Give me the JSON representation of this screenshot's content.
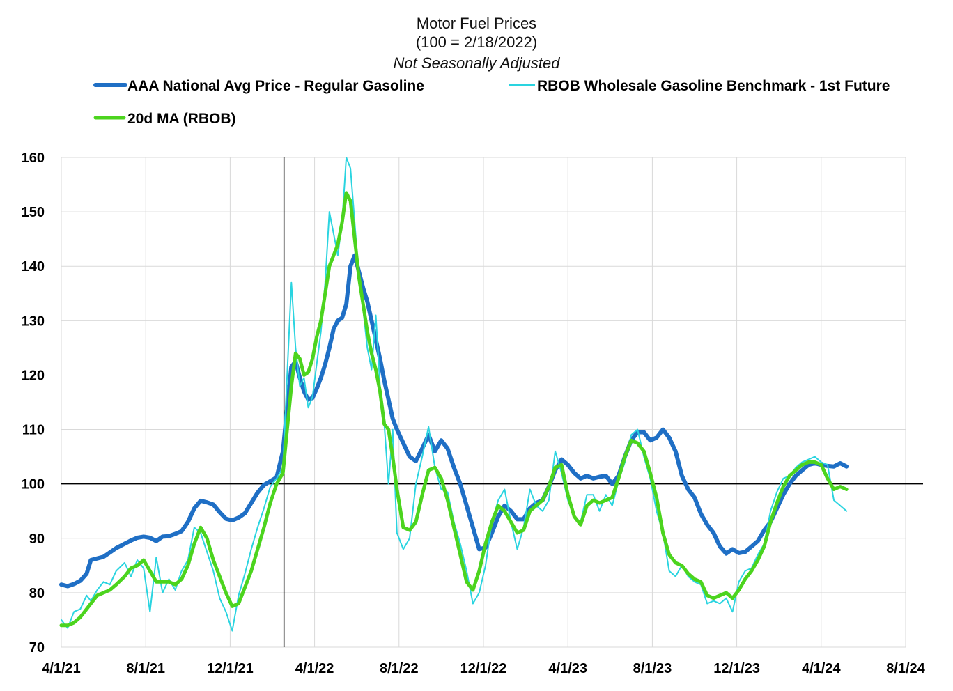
{
  "chart_data": {
    "type": "line",
    "title": "Motor Fuel Prices",
    "subtitle": "(100 = 2/18/2022)",
    "note": "Not Seasonally Adjusted",
    "xlabel": "",
    "ylabel": "",
    "ylim": [
      70,
      160
    ],
    "yticks": [
      "70",
      "80",
      "90",
      "100",
      "110",
      "120",
      "130",
      "140",
      "150",
      "160"
    ],
    "x_ticks_month_index": [
      0,
      4,
      8,
      12,
      16,
      20,
      24,
      28,
      32,
      36,
      40
    ],
    "x_tick_labels": [
      "4/1/21",
      "8/1/21",
      "12/1/21",
      "4/1/22",
      "8/1/22",
      "12/1/22",
      "4/1/23",
      "8/1/23",
      "12/1/23",
      "4/1/24",
      "8/1/24"
    ],
    "reference_lines": {
      "y": 100,
      "x_month_index": 10.55,
      "x_label": "2/18/2022"
    },
    "grid": true,
    "legend_position": "top",
    "series": [
      {
        "name": "AAA National Avg Price - Regular Gasoline",
        "color": "#1f6fc5",
        "width": 6,
        "x": [
          0,
          0.3,
          0.6,
          0.9,
          1.2,
          1.4,
          1.7,
          2.0,
          2.3,
          2.6,
          3.0,
          3.3,
          3.6,
          3.9,
          4.2,
          4.5,
          4.8,
          5.1,
          5.4,
          5.7,
          6.0,
          6.3,
          6.6,
          6.9,
          7.2,
          7.5,
          7.8,
          8.1,
          8.4,
          8.7,
          9.0,
          9.3,
          9.6,
          9.9,
          10.2,
          10.5,
          10.7,
          10.9,
          11.1,
          11.3,
          11.5,
          11.7,
          11.9,
          12.1,
          12.3,
          12.5,
          12.7,
          12.9,
          13.1,
          13.3,
          13.5,
          13.7,
          13.9,
          14.1,
          14.3,
          14.5,
          14.7,
          14.9,
          15.1,
          15.3,
          15.5,
          15.7,
          15.9,
          16.2,
          16.5,
          16.8,
          17.1,
          17.4,
          17.7,
          18.0,
          18.3,
          18.6,
          18.9,
          19.2,
          19.5,
          19.8,
          20.1,
          20.4,
          20.7,
          21.0,
          21.3,
          21.6,
          21.9,
          22.2,
          22.5,
          22.8,
          23.1,
          23.4,
          23.7,
          24.0,
          24.3,
          24.6,
          24.9,
          25.2,
          25.5,
          25.8,
          26.1,
          26.4,
          26.7,
          27.0,
          27.3,
          27.6,
          27.9,
          28.2,
          28.5,
          28.8,
          29.1,
          29.4,
          29.7,
          30.0,
          30.3,
          30.6,
          30.9,
          31.2,
          31.5,
          31.8,
          32.1,
          32.4,
          32.7,
          33.0,
          33.3,
          33.6,
          33.9,
          34.2,
          34.5,
          34.8,
          35.1,
          35.4,
          35.7,
          36.0,
          36.3,
          36.6,
          36.9,
          37.2
        ],
        "y": [
          81.5,
          81.2,
          81.6,
          82.2,
          83.5,
          86.0,
          86.3,
          86.6,
          87.4,
          88.2,
          89.0,
          89.6,
          90.1,
          90.3,
          90.1,
          89.5,
          90.3,
          90.4,
          90.8,
          91.3,
          93.0,
          95.5,
          96.9,
          96.6,
          96.2,
          94.8,
          93.6,
          93.3,
          93.8,
          94.6,
          96.5,
          98.4,
          99.8,
          100.5,
          101.2,
          106.0,
          114.0,
          121.5,
          122.5,
          119.5,
          117.0,
          115.5,
          115.8,
          117.5,
          119.5,
          122.0,
          125.0,
          128.5,
          130.0,
          130.5,
          133.0,
          140.0,
          142.0,
          139.0,
          136.0,
          133.5,
          130.0,
          126.5,
          123.0,
          119.0,
          115.5,
          112.0,
          110.0,
          107.5,
          105.0,
          104.2,
          106.5,
          109.0,
          106.0,
          108.0,
          106.5,
          103.0,
          100.0,
          96.0,
          92.0,
          88.0,
          88.3,
          91.0,
          94.0,
          96.0,
          95.0,
          93.5,
          93.5,
          95.5,
          96.5,
          97.0,
          99.5,
          102.5,
          104.5,
          103.5,
          102.0,
          101.0,
          101.5,
          101.0,
          101.3,
          101.5,
          100.0,
          101.5,
          105.0,
          108.0,
          109.5,
          109.5,
          108.0,
          108.5,
          110.0,
          108.5,
          106.0,
          101.5,
          99.0,
          97.5,
          94.5,
          92.5,
          91.0,
          88.5,
          87.2,
          88.0,
          87.3,
          87.5,
          88.5,
          89.5,
          91.5,
          93.0,
          95.5,
          98.0,
          100.0,
          101.5,
          102.5,
          103.5,
          103.8,
          103.5,
          103.3,
          103.2,
          103.8,
          103.2
        ]
      },
      {
        "name": "RBOB Wholesale Gasoline Benchmark - 1st Future",
        "color": "#2ad4e0",
        "width": 2,
        "x": [
          0,
          0.3,
          0.6,
          0.9,
          1.2,
          1.4,
          1.7,
          2.0,
          2.3,
          2.6,
          3.0,
          3.3,
          3.6,
          3.9,
          4.2,
          4.5,
          4.8,
          5.1,
          5.4,
          5.7,
          6.0,
          6.3,
          6.6,
          6.9,
          7.2,
          7.5,
          7.8,
          8.1,
          8.4,
          8.7,
          9.0,
          9.3,
          9.6,
          9.9,
          10.2,
          10.5,
          10.7,
          10.9,
          11.1,
          11.3,
          11.5,
          11.7,
          11.9,
          12.1,
          12.3,
          12.5,
          12.7,
          12.9,
          13.1,
          13.3,
          13.5,
          13.7,
          13.9,
          14.1,
          14.3,
          14.5,
          14.7,
          14.9,
          15.1,
          15.3,
          15.5,
          15.7,
          15.9,
          16.2,
          16.5,
          16.8,
          17.1,
          17.4,
          17.7,
          18.0,
          18.3,
          18.6,
          18.9,
          19.2,
          19.5,
          19.8,
          20.1,
          20.4,
          20.7,
          21.0,
          21.3,
          21.6,
          21.9,
          22.2,
          22.5,
          22.8,
          23.1,
          23.4,
          23.7,
          24.0,
          24.3,
          24.6,
          24.9,
          25.2,
          25.5,
          25.8,
          26.1,
          26.4,
          26.7,
          27.0,
          27.3,
          27.6,
          27.9,
          28.2,
          28.5,
          28.8,
          29.1,
          29.4,
          29.7,
          30.0,
          30.3,
          30.6,
          30.9,
          31.2,
          31.5,
          31.8,
          32.1,
          32.4,
          32.7,
          33.0,
          33.3,
          33.6,
          33.9,
          34.2,
          34.5,
          34.8,
          35.1,
          35.4,
          35.7,
          36.0,
          36.3,
          36.6,
          36.9,
          37.2
        ],
        "y": [
          75.0,
          73.5,
          76.5,
          77.0,
          79.5,
          78.5,
          80.5,
          82.0,
          81.5,
          84.0,
          85.5,
          83.0,
          86.0,
          84.5,
          76.5,
          86.5,
          80.0,
          82.5,
          80.5,
          84.0,
          86.0,
          92.0,
          91.0,
          87.5,
          84.0,
          79.0,
          76.5,
          73.0,
          79.5,
          83.5,
          88.0,
          92.0,
          95.5,
          99.5,
          101.0,
          103.0,
          120.0,
          137.0,
          125.0,
          118.0,
          119.5,
          114.0,
          116.0,
          122.0,
          128.0,
          137.0,
          150.0,
          146.0,
          142.0,
          148.0,
          160.0,
          158.0,
          148.0,
          138.0,
          132.0,
          125.0,
          121.0,
          131.0,
          118.0,
          111.0,
          100.0,
          110.0,
          91.0,
          88.0,
          90.0,
          100.0,
          105.0,
          110.5,
          103.0,
          99.0,
          98.5,
          93.0,
          89.0,
          84.0,
          78.0,
          80.0,
          85.0,
          93.0,
          97.0,
          99.0,
          93.0,
          88.0,
          92.0,
          99.0,
          96.0,
          95.0,
          97.0,
          106.0,
          102.0,
          97.0,
          94.0,
          93.0,
          98.0,
          98.0,
          95.0,
          98.0,
          96.0,
          100.5,
          104.0,
          109.0,
          110.0,
          105.0,
          101.0,
          95.0,
          91.0,
          84.0,
          83.0,
          85.0,
          83.0,
          82.0,
          81.5,
          78.0,
          78.5,
          78.0,
          79.0,
          76.5,
          82.0,
          84.0,
          84.5,
          87.0,
          89.0,
          95.0,
          98.5,
          101.0,
          101.5,
          103.0,
          104.0,
          104.5,
          105.0,
          104.0,
          103.5,
          97.0,
          96.0,
          95.0
        ]
      },
      {
        "name": "20d MA (RBOB)",
        "color": "#4cd41e",
        "width": 5,
        "x": [
          0,
          0.3,
          0.6,
          0.9,
          1.2,
          1.4,
          1.7,
          2.0,
          2.3,
          2.6,
          3.0,
          3.3,
          3.6,
          3.9,
          4.2,
          4.5,
          4.8,
          5.1,
          5.4,
          5.7,
          6.0,
          6.3,
          6.6,
          6.9,
          7.2,
          7.5,
          7.8,
          8.1,
          8.4,
          8.7,
          9.0,
          9.3,
          9.6,
          9.9,
          10.2,
          10.5,
          10.7,
          10.9,
          11.1,
          11.3,
          11.5,
          11.7,
          11.9,
          12.1,
          12.3,
          12.5,
          12.7,
          12.9,
          13.1,
          13.3,
          13.5,
          13.7,
          13.9,
          14.1,
          14.3,
          14.5,
          14.7,
          14.9,
          15.1,
          15.3,
          15.5,
          15.7,
          15.9,
          16.2,
          16.5,
          16.8,
          17.1,
          17.4,
          17.7,
          18.0,
          18.3,
          18.6,
          18.9,
          19.2,
          19.5,
          19.8,
          20.1,
          20.4,
          20.7,
          21.0,
          21.3,
          21.6,
          21.9,
          22.2,
          22.5,
          22.8,
          23.1,
          23.4,
          23.7,
          24.0,
          24.3,
          24.6,
          24.9,
          25.2,
          25.5,
          25.8,
          26.1,
          26.4,
          26.7,
          27.0,
          27.3,
          27.6,
          27.9,
          28.2,
          28.5,
          28.8,
          29.1,
          29.4,
          29.7,
          30.0,
          30.3,
          30.6,
          30.9,
          31.2,
          31.5,
          31.8,
          32.1,
          32.4,
          32.7,
          33.0,
          33.3,
          33.6,
          33.9,
          34.2,
          34.5,
          34.8,
          35.1,
          35.4,
          35.7,
          36.0,
          36.3,
          36.6,
          36.9,
          37.2
        ],
        "y": [
          74.0,
          74.0,
          74.5,
          75.5,
          77.0,
          78.0,
          79.5,
          80.0,
          80.5,
          81.5,
          83.0,
          84.5,
          85.0,
          86.0,
          84.0,
          82.0,
          82.0,
          82.0,
          81.5,
          82.5,
          85.0,
          89.0,
          92.0,
          90.0,
          86.0,
          83.0,
          80.0,
          77.5,
          78.0,
          81.0,
          84.0,
          88.0,
          92.0,
          96.5,
          100.0,
          102.0,
          110.0,
          118.0,
          124.0,
          123.0,
          120.0,
          120.5,
          123.0,
          127.0,
          130.0,
          135.0,
          140.0,
          142.0,
          144.0,
          148.0,
          153.5,
          152.0,
          145.0,
          138.0,
          133.0,
          128.0,
          124.0,
          121.0,
          117.0,
          111.0,
          110.0,
          105.0,
          99.0,
          92.0,
          91.5,
          93.0,
          98.0,
          102.5,
          103.0,
          101.0,
          97.0,
          92.0,
          87.0,
          82.0,
          80.5,
          84.0,
          89.0,
          93.0,
          96.0,
          95.0,
          93.0,
          91.0,
          91.5,
          95.0,
          96.0,
          97.0,
          99.5,
          103.0,
          103.5,
          98.0,
          94.0,
          92.5,
          96.0,
          97.0,
          96.5,
          97.0,
          97.5,
          101.0,
          105.0,
          108.0,
          107.5,
          106.0,
          102.0,
          97.5,
          91.0,
          87.0,
          85.5,
          85.0,
          83.5,
          82.5,
          82.0,
          79.5,
          79.0,
          79.5,
          80.0,
          79.0,
          80.5,
          82.5,
          84.0,
          86.0,
          88.5,
          93.0,
          96.5,
          99.5,
          101.5,
          102.5,
          103.5,
          104.0,
          104.0,
          103.5,
          101.0,
          99.0,
          99.5,
          99.0
        ]
      }
    ]
  }
}
